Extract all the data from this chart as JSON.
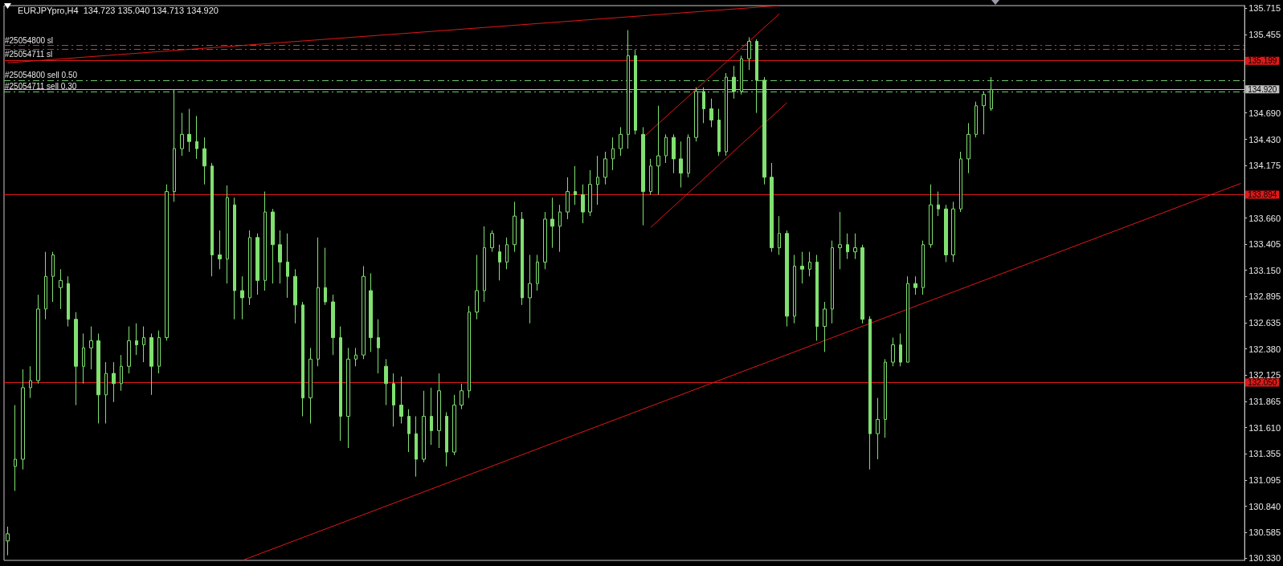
{
  "chart_data": {
    "type": "candlestick",
    "title": "EURJPYpro,H4  134.723 135.040 134.713 134.920",
    "categories": [
      null,
      null,
      null,
      null,
      null,
      null,
      null,
      null,
      null,
      null,
      null,
      null,
      null,
      null,
      null,
      null,
      null,
      null,
      null,
      null,
      null,
      null,
      null,
      null,
      null,
      null,
      null,
      null,
      null,
      null,
      null,
      null,
      null,
      null,
      null,
      null,
      null,
      null,
      null,
      null,
      null,
      null,
      null,
      null,
      null,
      null,
      null,
      null,
      null,
      null,
      null,
      null,
      null,
      null,
      null,
      null,
      null,
      null,
      null,
      null,
      null,
      null,
      null,
      null,
      null,
      null,
      null,
      null,
      null,
      null,
      null,
      null,
      null,
      null,
      null,
      null,
      null,
      null,
      null,
      null,
      null,
      null,
      null,
      null,
      null,
      null,
      null,
      null,
      null,
      null,
      null,
      null,
      null,
      null,
      null,
      null,
      null,
      null,
      null,
      null,
      null,
      null,
      null,
      null,
      null,
      null,
      null,
      null,
      null,
      null,
      null,
      null,
      null,
      null,
      null,
      null,
      null,
      null,
      null,
      null,
      null,
      null,
      null,
      null,
      null,
      null,
      null,
      null,
      null,
      null,
      null,
      null,
      null,
      null,
      null,
      null,
      null,
      null,
      null,
      null,
      null,
      null,
      null,
      null,
      null,
      null,
      null,
      null,
      null,
      null,
      null,
      null,
      null,
      null,
      null,
      null,
      null,
      null,
      null,
      null,
      null,
      null,
      null,
      null
    ],
    "series": [
      {
        "color": "#80e070",
        "ohlc": [
          [
            130.5,
            130.64,
            130.36,
            130.57
          ],
          [
            131.23,
            131.83,
            130.99,
            131.3
          ],
          [
            131.3,
            132.18,
            131.2,
            132.0
          ],
          [
            132.0,
            132.21,
            131.9,
            132.07
          ],
          [
            132.07,
            132.91,
            132.04,
            132.77
          ],
          [
            132.77,
            133.33,
            132.67,
            133.09
          ],
          [
            133.09,
            133.33,
            132.84,
            133.3
          ],
          [
            132.98,
            133.16,
            132.77,
            133.05
          ],
          [
            133.02,
            133.09,
            132.6,
            132.67
          ],
          [
            132.67,
            132.74,
            131.83,
            132.21
          ],
          [
            132.21,
            132.53,
            132.04,
            132.39
          ],
          [
            132.39,
            132.6,
            132.18,
            132.46
          ],
          [
            132.46,
            132.53,
            131.65,
            131.93
          ],
          [
            131.93,
            132.25,
            131.65,
            132.14
          ],
          [
            132.14,
            132.25,
            131.86,
            132.04
          ],
          [
            132.04,
            132.32,
            131.97,
            132.21
          ],
          [
            132.21,
            132.6,
            132.14,
            132.46
          ],
          [
            132.46,
            132.63,
            132.32,
            132.42
          ],
          [
            132.42,
            132.6,
            132.25,
            132.49
          ],
          [
            132.49,
            132.53,
            131.93,
            132.21
          ],
          [
            132.21,
            132.56,
            132.14,
            132.49
          ],
          [
            132.49,
            133.99,
            132.46,
            133.92
          ],
          [
            133.92,
            134.92,
            133.82,
            134.34
          ],
          [
            134.34,
            134.69,
            134.27,
            134.48
          ],
          [
            134.48,
            134.73,
            134.31,
            134.41
          ],
          [
            134.41,
            134.66,
            134.24,
            134.34
          ],
          [
            134.34,
            134.45,
            133.99,
            134.17
          ],
          [
            134.17,
            134.2,
            133.09,
            133.3
          ],
          [
            133.3,
            133.54,
            133.16,
            133.26
          ],
          [
            133.26,
            133.98,
            133.02,
            133.86
          ],
          [
            133.79,
            133.86,
            132.67,
            132.95
          ],
          [
            132.95,
            133.09,
            132.67,
            132.88
          ],
          [
            132.88,
            133.54,
            132.81,
            133.47
          ],
          [
            133.47,
            133.51,
            132.91,
            133.05
          ],
          [
            133.05,
            133.92,
            132.95,
            133.72
          ],
          [
            133.72,
            133.75,
            133.02,
            133.4
          ],
          [
            133.4,
            133.54,
            133.02,
            133.23
          ],
          [
            133.23,
            133.51,
            132.88,
            133.09
          ],
          [
            133.09,
            133.16,
            132.63,
            132.81
          ],
          [
            132.81,
            132.84,
            131.72,
            131.9
          ],
          [
            131.9,
            132.39,
            131.65,
            132.28
          ],
          [
            132.28,
            133.47,
            132.21,
            132.98
          ],
          [
            132.98,
            133.37,
            132.81,
            132.84
          ],
          [
            132.84,
            132.91,
            132.32,
            132.49
          ],
          [
            132.49,
            132.6,
            131.48,
            131.72
          ],
          [
            131.72,
            132.39,
            131.41,
            132.28
          ],
          [
            132.28,
            132.39,
            132.21,
            132.32
          ],
          [
            132.32,
            133.19,
            132.28,
            133.09
          ],
          [
            132.95,
            133.12,
            132.35,
            132.49
          ],
          [
            132.49,
            132.67,
            132.14,
            132.39
          ],
          [
            132.21,
            132.28,
            131.83,
            132.04
          ],
          [
            132.04,
            132.14,
            131.62,
            131.83
          ],
          [
            131.83,
            132.11,
            131.65,
            131.72
          ],
          [
            131.72,
            131.79,
            131.37,
            131.55
          ],
          [
            131.55,
            131.72,
            131.13,
            131.3
          ],
          [
            131.3,
            131.97,
            131.27,
            131.72
          ],
          [
            131.72,
            132.0,
            131.44,
            131.58
          ],
          [
            131.58,
            132.14,
            131.41,
            131.97
          ],
          [
            131.72,
            131.76,
            131.23,
            131.37
          ],
          [
            131.37,
            131.93,
            131.34,
            131.83
          ],
          [
            131.83,
            132.04,
            131.79,
            131.97
          ],
          [
            131.97,
            132.8,
            131.9,
            132.74
          ],
          [
            132.74,
            133.3,
            132.67,
            132.95
          ],
          [
            132.95,
            133.58,
            132.84,
            133.37
          ],
          [
            133.37,
            133.54,
            133.33,
            133.51
          ],
          [
            133.33,
            133.4,
            133.05,
            133.23
          ],
          [
            133.23,
            133.47,
            133.16,
            133.4
          ],
          [
            133.4,
            133.82,
            133.33,
            133.68
          ],
          [
            133.65,
            133.72,
            132.81,
            132.88
          ],
          [
            132.88,
            133.3,
            132.63,
            133.02
          ],
          [
            133.02,
            133.3,
            132.95,
            133.23
          ],
          [
            133.23,
            133.72,
            133.16,
            133.65
          ],
          [
            133.65,
            133.86,
            133.37,
            133.58
          ],
          [
            133.58,
            133.79,
            133.33,
            133.72
          ],
          [
            133.72,
            134.06,
            133.65,
            133.92
          ],
          [
            133.92,
            134.17,
            133.79,
            133.89
          ],
          [
            133.89,
            133.99,
            133.61,
            133.72
          ],
          [
            133.72,
            134.13,
            133.68,
            133.99
          ],
          [
            133.99,
            134.27,
            133.79,
            134.06
          ],
          [
            134.06,
            134.31,
            133.99,
            134.24
          ],
          [
            134.24,
            134.45,
            134.13,
            134.34
          ],
          [
            134.34,
            134.55,
            134.27,
            134.48
          ],
          [
            134.48,
            135.5,
            134.34,
            135.25
          ],
          [
            135.25,
            135.31,
            134.48,
            134.52
          ],
          [
            134.48,
            134.55,
            133.59,
            133.92
          ],
          [
            133.92,
            134.24,
            133.89,
            134.17
          ],
          [
            134.17,
            134.76,
            133.89,
            134.27
          ],
          [
            134.27,
            134.48,
            134.2,
            134.45
          ],
          [
            134.45,
            134.48,
            134.1,
            134.24
          ],
          [
            134.24,
            134.41,
            133.96,
            134.1
          ],
          [
            134.1,
            134.48,
            134.06,
            134.45
          ],
          [
            134.45,
            134.94,
            134.41,
            134.9
          ],
          [
            134.9,
            134.94,
            134.59,
            134.73
          ],
          [
            134.73,
            134.83,
            134.55,
            134.62
          ],
          [
            134.62,
            134.73,
            134.27,
            134.31
          ],
          [
            134.31,
            135.08,
            134.27,
            135.04
          ],
          [
            135.04,
            135.15,
            134.83,
            134.9
          ],
          [
            134.9,
            135.25,
            134.87,
            135.22
          ],
          [
            135.22,
            135.43,
            135.11,
            135.39
          ],
          [
            135.39,
            135.41,
            134.69,
            135.01
          ],
          [
            135.01,
            135.04,
            133.99,
            134.06
          ],
          [
            134.06,
            134.2,
            133.33,
            133.37
          ],
          [
            133.37,
            133.68,
            133.3,
            133.51
          ],
          [
            133.51,
            133.54,
            132.6,
            132.7
          ],
          [
            132.7,
            133.3,
            132.63,
            133.19
          ],
          [
            133.19,
            133.33,
            133.02,
            133.16
          ],
          [
            133.16,
            133.33,
            133.09,
            133.23
          ],
          [
            133.23,
            133.3,
            132.46,
            132.6
          ],
          [
            132.6,
            132.84,
            132.35,
            132.77
          ],
          [
            132.77,
            133.44,
            132.63,
            133.37
          ],
          [
            133.37,
            133.72,
            133.16,
            133.4
          ],
          [
            133.4,
            133.51,
            133.26,
            133.33
          ],
          [
            133.33,
            133.51,
            133.26,
            133.37
          ],
          [
            133.37,
            133.4,
            132.63,
            132.67
          ],
          [
            132.67,
            132.7,
            131.2,
            131.55
          ],
          [
            131.55,
            131.9,
            131.3,
            131.69
          ],
          [
            131.69,
            132.28,
            131.51,
            132.25
          ],
          [
            132.25,
            132.49,
            132.21,
            132.42
          ],
          [
            132.42,
            132.53,
            132.21,
            132.25
          ],
          [
            132.25,
            133.09,
            132.25,
            133.02
          ],
          [
            133.02,
            133.09,
            132.91,
            132.98
          ],
          [
            132.98,
            133.44,
            132.91,
            133.4
          ],
          [
            133.4,
            133.99,
            133.37,
            133.79
          ],
          [
            133.79,
            133.92,
            133.68,
            133.75
          ],
          [
            133.75,
            133.79,
            133.23,
            133.3
          ],
          [
            133.3,
            133.82,
            133.23,
            133.75
          ],
          [
            133.75,
            134.31,
            133.72,
            134.24
          ],
          [
            134.24,
            134.59,
            134.1,
            134.48
          ],
          [
            134.48,
            134.8,
            134.45,
            134.76
          ],
          [
            134.76,
            134.9,
            134.48,
            134.87
          ],
          [
            134.73,
            135.04,
            134.71,
            134.92
          ],
          null,
          null,
          null,
          null,
          null,
          null,
          null,
          null,
          null,
          null,
          null,
          null,
          null,
          null,
          null,
          null,
          null,
          null,
          null,
          null,
          null,
          null,
          null,
          null,
          null,
          null,
          null,
          null,
          null,
          null,
          null,
          null,
          null
        ]
      },
      {
        "type": "line",
        "color": "#e01818",
        "values": [
          135.18,
          null,
          null,
          null,
          null,
          null,
          null,
          null,
          null,
          null,
          null,
          null,
          null,
          null,
          null,
          null,
          null,
          null,
          null,
          null,
          null,
          null,
          null,
          null,
          null,
          null,
          null,
          null,
          null,
          null,
          null,
          null,
          null,
          null,
          null,
          null,
          null,
          null,
          null,
          null,
          null,
          null,
          null,
          null,
          null,
          null,
          null,
          null,
          null,
          null,
          null,
          null,
          null,
          null,
          null,
          null,
          null,
          null,
          null,
          null,
          null,
          null,
          null,
          null,
          null,
          null,
          null,
          null,
          null,
          null,
          null,
          null,
          null,
          null,
          null,
          null,
          null,
          null,
          null,
          null,
          null,
          null,
          null,
          null,
          null,
          null,
          null,
          null,
          null,
          null,
          null,
          null,
          null,
          null,
          null,
          null,
          null,
          null,
          null,
          null,
          null,
          null,
          135.74,
          null,
          null,
          null,
          null,
          null,
          null,
          null,
          null,
          null,
          null,
          null,
          null,
          null,
          null,
          null,
          null,
          null,
          null,
          null,
          null,
          null,
          null,
          null,
          null,
          null,
          null,
          null,
          null,
          null,
          null,
          null,
          null,
          null,
          null,
          null,
          null,
          null,
          null,
          null,
          null,
          null,
          null,
          null,
          null,
          null,
          null,
          null,
          null,
          null,
          null,
          null,
          null,
          null,
          null,
          null,
          null,
          null,
          null,
          null,
          null,
          null
        ]
      },
      {
        "type": "line",
        "color": "#e01818",
        "values": [
          null,
          null,
          null,
          null,
          null,
          null,
          null,
          null,
          null,
          null,
          null,
          null,
          null,
          null,
          null,
          null,
          null,
          null,
          null,
          null,
          null,
          null,
          null,
          null,
          null,
          null,
          null,
          null,
          null,
          null,
          null,
          130.31,
          null,
          null,
          null,
          null,
          null,
          null,
          null,
          null,
          null,
          null,
          null,
          null,
          null,
          null,
          null,
          null,
          null,
          null,
          null,
          null,
          null,
          null,
          null,
          null,
          null,
          null,
          null,
          null,
          null,
          null,
          null,
          null,
          null,
          null,
          null,
          null,
          null,
          null,
          null,
          null,
          null,
          null,
          null,
          null,
          null,
          null,
          null,
          null,
          null,
          null,
          null,
          null,
          null,
          null,
          null,
          null,
          null,
          null,
          null,
          null,
          null,
          null,
          null,
          null,
          null,
          null,
          null,
          null,
          null,
          null,
          null,
          null,
          null,
          null,
          null,
          null,
          null,
          null,
          null,
          null,
          null,
          null,
          null,
          null,
          null,
          null,
          null,
          null,
          null,
          null,
          null,
          null,
          null,
          null,
          null,
          null,
          null,
          null,
          null,
          null,
          null,
          null,
          null,
          null,
          null,
          null,
          null,
          null,
          null,
          null,
          null,
          null,
          null,
          null,
          null,
          null,
          null,
          null,
          null,
          null,
          null,
          null,
          null,
          null,
          null,
          null,
          null,
          null,
          null,
          null,
          null,
          134.0
        ]
      },
      {
        "type": "line",
        "color": "#e01818",
        "values": [
          null,
          null,
          null,
          null,
          null,
          null,
          null,
          null,
          null,
          null,
          null,
          null,
          null,
          null,
          null,
          null,
          null,
          null,
          null,
          null,
          null,
          null,
          null,
          null,
          null,
          null,
          null,
          null,
          null,
          null,
          null,
          null,
          null,
          null,
          null,
          null,
          null,
          null,
          null,
          null,
          null,
          null,
          null,
          null,
          null,
          null,
          null,
          null,
          null,
          null,
          null,
          null,
          null,
          null,
          null,
          null,
          null,
          null,
          null,
          null,
          null,
          null,
          null,
          null,
          null,
          null,
          null,
          null,
          null,
          null,
          null,
          null,
          null,
          null,
          null,
          null,
          null,
          null,
          null,
          null,
          null,
          null,
          null,
          null,
          134.45,
          null,
          null,
          null,
          null,
          null,
          null,
          null,
          null,
          null,
          null,
          null,
          null,
          null,
          null,
          null,
          null,
          null,
          135.66,
          null,
          null,
          null,
          null,
          null,
          null,
          null,
          null,
          null,
          null,
          null,
          null,
          null,
          null,
          null,
          null,
          null,
          null,
          null,
          null,
          null,
          null,
          null,
          null,
          null,
          null,
          null,
          null,
          null,
          null,
          null,
          null,
          null,
          null,
          null,
          null,
          null,
          null,
          null,
          null,
          null,
          null,
          null,
          null,
          null,
          null,
          null,
          null,
          null,
          null,
          null,
          null,
          null,
          null,
          null,
          null,
          null,
          null,
          null,
          null,
          null
        ]
      },
      {
        "type": "line",
        "color": "#e01818",
        "values": [
          null,
          null,
          null,
          null,
          null,
          null,
          null,
          null,
          null,
          null,
          null,
          null,
          null,
          null,
          null,
          null,
          null,
          null,
          null,
          null,
          null,
          null,
          null,
          null,
          null,
          null,
          null,
          null,
          null,
          null,
          null,
          null,
          null,
          null,
          null,
          null,
          null,
          null,
          null,
          null,
          null,
          null,
          null,
          null,
          null,
          null,
          null,
          null,
          null,
          null,
          null,
          null,
          null,
          null,
          null,
          null,
          null,
          null,
          null,
          null,
          null,
          null,
          null,
          null,
          null,
          null,
          null,
          null,
          null,
          null,
          null,
          null,
          null,
          null,
          null,
          null,
          null,
          null,
          null,
          null,
          null,
          null,
          null,
          null,
          null,
          133.57,
          null,
          null,
          null,
          null,
          null,
          null,
          null,
          null,
          null,
          null,
          null,
          null,
          null,
          null,
          null,
          null,
          null,
          134.79,
          null,
          null,
          null,
          null,
          null,
          null,
          null,
          null,
          null,
          null,
          null,
          null,
          null,
          null,
          null,
          null,
          null,
          null,
          null,
          null,
          null,
          null,
          null,
          null,
          null,
          null,
          null,
          null,
          null,
          null,
          null,
          null,
          null,
          null,
          null,
          null,
          null,
          null,
          null,
          null,
          null,
          null,
          null,
          null,
          null,
          null,
          null,
          null,
          null,
          null,
          null,
          null,
          null,
          null,
          null,
          null,
          null,
          null,
          null,
          null
        ]
      }
    ],
    "ylim": [
      130.31,
      135.74
    ],
    "yticks": [
      135.715,
      135.455,
      {
        "value": 134.69,
        "label": "134.690"
      },
      {
        "value": 134.43,
        "label": "134.430"
      },
      {
        "value": 134.175,
        "label": "134.175"
      },
      {
        "value": 133.66,
        "label": "133.660"
      },
      133.405,
      {
        "value": 133.15,
        "label": "133.150"
      },
      132.895,
      132.635,
      {
        "value": 132.38,
        "label": "132.380"
      },
      132.125,
      131.865,
      {
        "value": 131.61,
        "label": "131.610"
      },
      131.355,
      131.095,
      {
        "value": 130.84,
        "label": "130.840"
      },
      130.585,
      {
        "value": 130.33,
        "label": "130.330"
      }
    ],
    "ref_lines": [
      {
        "axis": "y",
        "value": 135.35,
        "label": "#25054800 sl",
        "color": "#e03030",
        "line_style": "dashed"
      },
      {
        "axis": "y",
        "value": 135.31,
        "label": "#25054711 sl",
        "color": "#e03030",
        "line_style": "dashed"
      },
      {
        "axis": "y",
        "value": 135.199,
        "label": "135.199",
        "color": "#e01818",
        "line_style": "solid"
      },
      {
        "axis": "y",
        "value": 135.01,
        "label": "#25054800 sell 0.50",
        "color": "#6cc86c",
        "line_style": "dashed"
      },
      {
        "axis": "y",
        "value": 134.92,
        "label": "134.920",
        "color": "#c0c0c0",
        "line_style": "solid"
      },
      {
        "axis": "y",
        "value": 134.9,
        "label": "#25054711 sell 0.30",
        "color": "#6cc86c",
        "line_style": "dashed"
      },
      {
        "axis": "y",
        "value": 133.894,
        "label": "133.894",
        "color": "#e01818",
        "line_style": "solid"
      },
      {
        "axis": "y",
        "value": 132.05,
        "label": "132.050",
        "color": "#e01818",
        "line_style": "solid"
      }
    ],
    "grid": false,
    "tick_labels": "y",
    "marker": "none",
    "line_style": "solid"
  }
}
